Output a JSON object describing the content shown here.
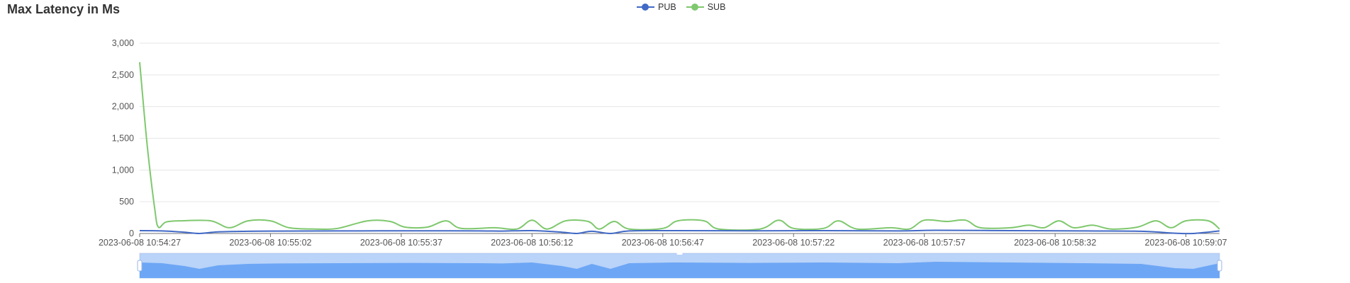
{
  "title": "Max Latency in Ms",
  "legend": [
    {
      "label": "PUB",
      "color": "#4169c6"
    },
    {
      "label": "SUB",
      "color": "#7fc86e"
    }
  ],
  "chart_data": {
    "type": "line",
    "smooth": true,
    "grid": true,
    "legend_position": "top-center",
    "xlabel": "",
    "ylabel": "",
    "ylim": [
      0,
      3000
    ],
    "y_ticks": [
      "0",
      "500",
      "1,000",
      "1,500",
      "2,000",
      "2,500",
      "3,000"
    ],
    "x_tick_labels": [
      "2023-06-08 10:54:27",
      "2023-06-08 10:55:02",
      "2023-06-08 10:55:37",
      "2023-06-08 10:56:12",
      "2023-06-08 10:56:47",
      "2023-06-08 10:57:22",
      "2023-06-08 10:57:57",
      "2023-06-08 10:58:32",
      "2023-06-08 10:59:07"
    ],
    "x_range": [
      "2023-06-08 10:54:27",
      "2023-06-08 10:59:16"
    ],
    "series": [
      {
        "name": "PUB",
        "color": "#4169c6",
        "points": [
          [
            "2023-06-08 10:54:27",
            45
          ],
          [
            "2023-06-08 10:54:33",
            40
          ],
          [
            "2023-06-08 10:54:39",
            20
          ],
          [
            "2023-06-08 10:54:43",
            0
          ],
          [
            "2023-06-08 10:54:48",
            25
          ],
          [
            "2023-06-08 10:54:56",
            35
          ],
          [
            "2023-06-08 10:55:04",
            38
          ],
          [
            "2023-06-08 10:55:20",
            40
          ],
          [
            "2023-06-08 10:55:40",
            42
          ],
          [
            "2023-06-08 10:55:58",
            40
          ],
          [
            "2023-06-08 10:56:04",
            38
          ],
          [
            "2023-06-08 10:56:12",
            45
          ],
          [
            "2023-06-08 10:56:20",
            20
          ],
          [
            "2023-06-08 10:56:24",
            0
          ],
          [
            "2023-06-08 10:56:28",
            35
          ],
          [
            "2023-06-08 10:56:33",
            0
          ],
          [
            "2023-06-08 10:56:38",
            40
          ],
          [
            "2023-06-08 10:56:50",
            45
          ],
          [
            "2023-06-08 10:57:10",
            42
          ],
          [
            "2023-06-08 10:57:30",
            45
          ],
          [
            "2023-06-08 10:57:50",
            40
          ],
          [
            "2023-06-08 10:58:00",
            50
          ],
          [
            "2023-06-08 10:58:20",
            45
          ],
          [
            "2023-06-08 10:58:40",
            40
          ],
          [
            "2023-06-08 10:58:55",
            35
          ],
          [
            "2023-06-08 10:59:04",
            5
          ],
          [
            "2023-06-08 10:59:09",
            0
          ],
          [
            "2023-06-08 10:59:16",
            40
          ]
        ]
      },
      {
        "name": "SUB",
        "color": "#7fc86e",
        "points": [
          [
            "2023-06-08 10:54:27",
            2700
          ],
          [
            "2023-06-08 10:54:29",
            1400
          ],
          [
            "2023-06-08 10:54:31",
            400
          ],
          [
            "2023-06-08 10:54:32",
            100
          ],
          [
            "2023-06-08 10:54:34",
            180
          ],
          [
            "2023-06-08 10:54:38",
            200
          ],
          [
            "2023-06-08 10:54:46",
            200
          ],
          [
            "2023-06-08 10:54:51",
            90
          ],
          [
            "2023-06-08 10:54:56",
            200
          ],
          [
            "2023-06-08 10:55:02",
            200
          ],
          [
            "2023-06-08 10:55:07",
            90
          ],
          [
            "2023-06-08 10:55:14",
            70
          ],
          [
            "2023-06-08 10:55:20",
            80
          ],
          [
            "2023-06-08 10:55:28",
            200
          ],
          [
            "2023-06-08 10:55:34",
            190
          ],
          [
            "2023-06-08 10:55:38",
            100
          ],
          [
            "2023-06-08 10:55:44",
            100
          ],
          [
            "2023-06-08 10:55:49",
            200
          ],
          [
            "2023-06-08 10:55:53",
            80
          ],
          [
            "2023-06-08 10:56:02",
            90
          ],
          [
            "2023-06-08 10:56:08",
            70
          ],
          [
            "2023-06-08 10:56:12",
            210
          ],
          [
            "2023-06-08 10:56:16",
            70
          ],
          [
            "2023-06-08 10:56:21",
            200
          ],
          [
            "2023-06-08 10:56:27",
            190
          ],
          [
            "2023-06-08 10:56:30",
            70
          ],
          [
            "2023-06-08 10:56:34",
            190
          ],
          [
            "2023-06-08 10:56:38",
            70
          ],
          [
            "2023-06-08 10:56:47",
            80
          ],
          [
            "2023-06-08 10:56:51",
            200
          ],
          [
            "2023-06-08 10:56:58",
            200
          ],
          [
            "2023-06-08 10:57:02",
            70
          ],
          [
            "2023-06-08 10:57:13",
            70
          ],
          [
            "2023-06-08 10:57:18",
            210
          ],
          [
            "2023-06-08 10:57:22",
            80
          ],
          [
            "2023-06-08 10:57:30",
            80
          ],
          [
            "2023-06-08 10:57:34",
            200
          ],
          [
            "2023-06-08 10:57:39",
            70
          ],
          [
            "2023-06-08 10:57:48",
            90
          ],
          [
            "2023-06-08 10:57:53",
            70
          ],
          [
            "2023-06-08 10:57:57",
            210
          ],
          [
            "2023-06-08 10:58:03",
            190
          ],
          [
            "2023-06-08 10:58:08",
            210
          ],
          [
            "2023-06-08 10:58:12",
            90
          ],
          [
            "2023-06-08 10:58:20",
            90
          ],
          [
            "2023-06-08 10:58:25",
            130
          ],
          [
            "2023-06-08 10:58:29",
            90
          ],
          [
            "2023-06-08 10:58:33",
            200
          ],
          [
            "2023-06-08 10:58:37",
            90
          ],
          [
            "2023-06-08 10:58:42",
            130
          ],
          [
            "2023-06-08 10:58:47",
            70
          ],
          [
            "2023-06-08 10:58:54",
            100
          ],
          [
            "2023-06-08 10:58:59",
            200
          ],
          [
            "2023-06-08 10:59:03",
            90
          ],
          [
            "2023-06-08 10:59:07",
            200
          ],
          [
            "2023-06-08 10:59:13",
            200
          ],
          [
            "2023-06-08 10:59:16",
            70
          ]
        ]
      }
    ]
  }
}
